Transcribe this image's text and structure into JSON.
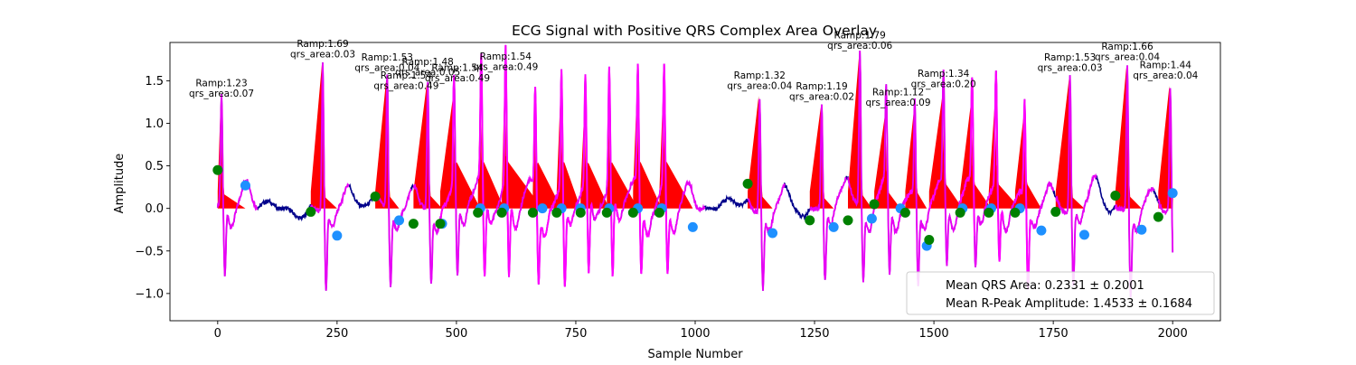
{
  "chart_data": {
    "type": "line",
    "title": "ECG Signal with Positive QRS Complex Area Overlay",
    "xlabel": "Sample Number",
    "ylabel": "Amplitude",
    "xlim": [
      -100,
      2100
    ],
    "ylim": [
      -1.32,
      1.95
    ],
    "xticks": [
      0,
      250,
      500,
      750,
      1000,
      1250,
      1500,
      1750,
      2000
    ],
    "yticks": [
      -1.0,
      -0.5,
      0.0,
      0.5,
      1.0,
      1.5
    ],
    "xtick_labels": [
      "0",
      "250",
      "500",
      "750",
      "1000",
      "1250",
      "1500",
      "1750",
      "2000"
    ],
    "ytick_labels": [
      "−1.0",
      "−0.5",
      "0.0",
      "0.5",
      "1.0",
      "1.5"
    ],
    "grid": false,
    "legend_position": "lower-right",
    "colors": {
      "ecg": "#00008b",
      "qrs_highlight": "#ff00ff",
      "area_fill": "#ff0000",
      "qrs_onset_marker": "#008000",
      "qrs_offset_marker": "#1e90ff"
    },
    "beats": [
      {
        "onset": 0,
        "onset_amp": 0.45,
        "peak": 8,
        "ramp": 1.23,
        "offset": 58,
        "offset_amp": 0.27,
        "qrs_area": 0.07,
        "label": "Ramp:1.23\nqrs_area:0.07",
        "label_offset": 0
      },
      {
        "onset": 195,
        "onset_amp": -0.04,
        "peak": 220,
        "ramp": 1.69,
        "offset": 250,
        "offset_amp": -0.32,
        "qrs_area": 0.03,
        "label": "Ramp:1.69\nqrs_area:0.03",
        "label_offset": 0
      },
      {
        "onset": 330,
        "onset_amp": 0.14,
        "peak": 355,
        "ramp": 1.53,
        "offset": 380,
        "offset_amp": -0.14,
        "qrs_area": 0.04,
        "label": "Ramp:1.53\nqrs_area:0.04",
        "label_offset": 0
      },
      {
        "onset": 410,
        "onset_amp": -0.18,
        "peak": 440,
        "ramp": 1.48,
        "offset": 470,
        "offset_amp": -0.18,
        "qrs_area": 0.05,
        "label": "Ramp:1.48\nqrs_area:0.05",
        "label_offset": 0
      },
      {
        "onset": 466,
        "onset_amp": -0.18,
        "peak": 495,
        "ramp": 1.32,
        "offset": 550,
        "offset_amp": 0.0,
        "qrs_area": 0.49,
        "label": "Ramp:1.54\nqrs_area:0.49",
        "label_offset": 100
      },
      {
        "onset": 545,
        "onset_amp": -0.05,
        "peak": 552,
        "ramp": 1.41,
        "offset": 600,
        "offset_amp": 0.0,
        "qrs_area": 0.49,
        "label": "Ramp:1.54\nqrs_area:0.49",
        "label_offset": 50
      },
      {
        "onset": 595,
        "onset_amp": -0.05,
        "peak": 603,
        "ramp": 1.54,
        "offset": 680,
        "offset_amp": 0.0,
        "qrs_area": 0.49,
        "label": "Ramp:1.54\nqrs_area:0.49",
        "label_offset": 0
      },
      {
        "onset": 660,
        "onset_amp": -0.05,
        "peak": 665,
        "ramp": 1.24,
        "offset": 720,
        "offset_amp": 0.0,
        "qrs_area": 0.49
      },
      {
        "onset": 710,
        "onset_amp": -0.05,
        "peak": 720,
        "ramp": 1.38,
        "offset": 760,
        "offset_amp": 0.0,
        "qrs_area": 0.49
      },
      {
        "onset": 760,
        "onset_amp": -0.05,
        "peak": 770,
        "ramp": 1.2,
        "offset": 820,
        "offset_amp": 0.0,
        "qrs_area": 0.49
      },
      {
        "onset": 815,
        "onset_amp": -0.05,
        "peak": 820,
        "ramp": 1.31,
        "offset": 880,
        "offset_amp": 0.0,
        "qrs_area": 0.49
      },
      {
        "onset": 870,
        "onset_amp": -0.05,
        "peak": 880,
        "ramp": 1.41,
        "offset": 930,
        "offset_amp": 0.0,
        "qrs_area": 0.49
      },
      {
        "onset": 925,
        "onset_amp": -0.05,
        "peak": 935,
        "ramp": 1.43,
        "offset": 995,
        "offset_amp": -0.22,
        "qrs_area": 0.49
      },
      {
        "onset": 1110,
        "onset_amp": 0.29,
        "peak": 1135,
        "ramp": 1.32,
        "offset": 1162,
        "offset_amp": -0.29,
        "qrs_area": 0.04,
        "label": "Ramp:1.32\nqrs_area:0.04",
        "label_offset": 0
      },
      {
        "onset": 1240,
        "onset_amp": -0.14,
        "peak": 1265,
        "ramp": 1.19,
        "offset": 1290,
        "offset_amp": -0.22,
        "qrs_area": 0.02,
        "label": "Ramp:1.19\nqrs_area:0.02",
        "label_offset": 0
      },
      {
        "onset": 1320,
        "onset_amp": -0.14,
        "peak": 1345,
        "ramp": 1.79,
        "offset": 1370,
        "offset_amp": -0.12,
        "qrs_area": 0.06,
        "label": "Ramp:1.79\nqrs_area:0.06",
        "label_offset": 0
      },
      {
        "onset": 1375,
        "onset_amp": 0.05,
        "peak": 1400,
        "ramp": 1.12,
        "offset": 1430,
        "offset_amp": 0.0,
        "qrs_area": 0.09,
        "label": "Ramp:1.12\nqrs_area:0.09",
        "label_offset": -25
      },
      {
        "onset": 1440,
        "onset_amp": -0.05,
        "peak": 1460,
        "ramp": 1.15,
        "offset": 1485,
        "offset_amp": -0.44,
        "qrs_area": 0.09
      },
      {
        "onset": 1490,
        "onset_amp": -0.37,
        "peak": 1520,
        "ramp": 1.34,
        "offset": 1560,
        "offset_amp": 0.0,
        "qrs_area": 0.2,
        "label": "Ramp:1.34\nqrs_area:0.20",
        "label_offset": 0
      },
      {
        "onset": 1555,
        "onset_amp": -0.05,
        "peak": 1580,
        "ramp": 1.26,
        "offset": 1620,
        "offset_amp": 0.0,
        "qrs_area": 0.2
      },
      {
        "onset": 1615,
        "onset_amp": -0.05,
        "peak": 1630,
        "ramp": 1.28,
        "offset": 1680,
        "offset_amp": 0.0,
        "qrs_area": 0.2
      },
      {
        "onset": 1670,
        "onset_amp": -0.05,
        "peak": 1690,
        "ramp": 1.1,
        "offset": 1725,
        "offset_amp": -0.26,
        "qrs_area": 0.2
      },
      {
        "onset": 1755,
        "onset_amp": -0.04,
        "peak": 1785,
        "ramp": 1.53,
        "offset": 1815,
        "offset_amp": -0.31,
        "qrs_area": 0.03,
        "label": "Ramp:1.53\nqrs_area:0.03",
        "label_offset": 0
      },
      {
        "onset": 1880,
        "onset_amp": 0.15,
        "peak": 1905,
        "ramp": 1.66,
        "offset": 1935,
        "offset_amp": -0.25,
        "qrs_area": 0.04,
        "label": "Ramp:1.66\nqrs_area:0.04",
        "label_offset": 0
      },
      {
        "onset": 1970,
        "onset_amp": -0.1,
        "peak": 1995,
        "ramp": 1.44,
        "offset": 2000,
        "offset_amp": 0.18,
        "qrs_area": 0.04,
        "label": "Ramp:1.44\nqrs_area:0.04",
        "label_offset": 10
      }
    ],
    "stats_box": {
      "lines": [
        "Mean QRS Area: 0.2331 ± 0.2001",
        "Mean R-Peak Amplitude: 1.4533 ± 0.1684"
      ],
      "position": "lower-right"
    }
  }
}
